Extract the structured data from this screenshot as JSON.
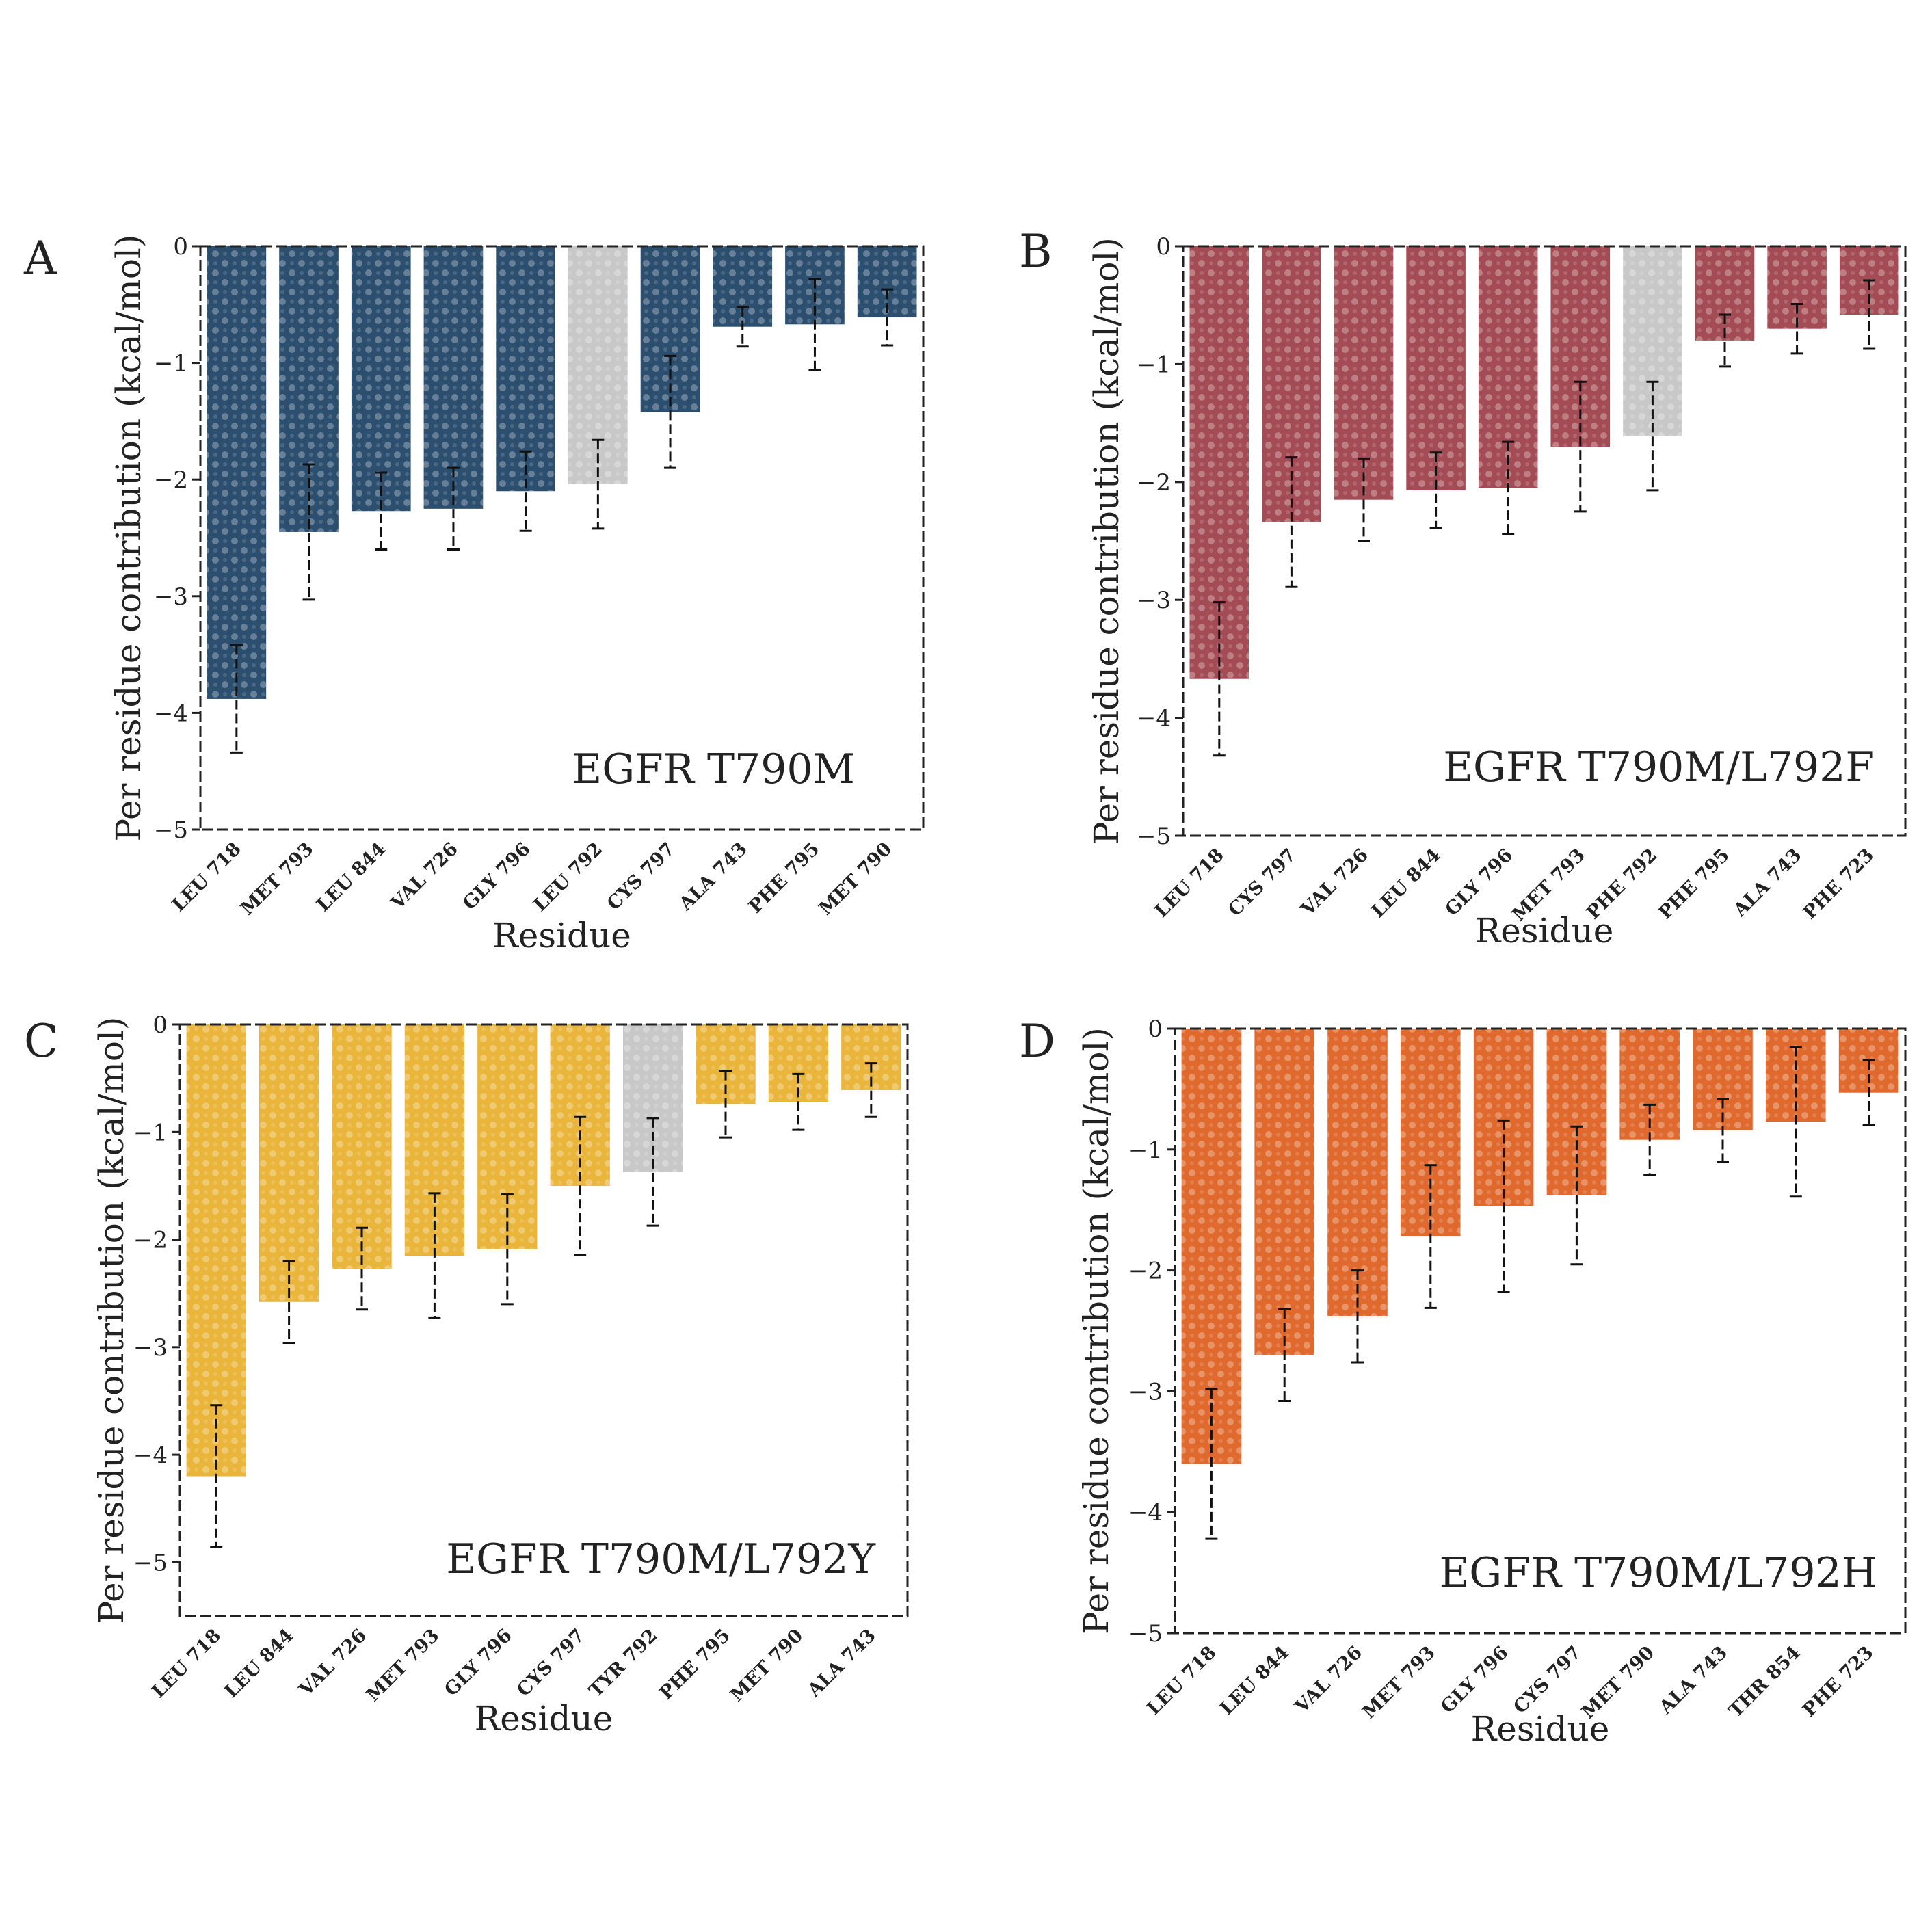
{
  "figure": {
    "panels": [
      "A",
      "B",
      "C",
      "D"
    ]
  },
  "chart_data": [
    {
      "type": "bar",
      "panel_letter": "A",
      "inset_label": "EGFR T790M",
      "color": "#2c4f70",
      "highlight_color": "#c8c8c8",
      "xlabel": "Residue",
      "ylabel": "Per residue contribution (kcal/mol)",
      "ylim": [
        -5,
        0
      ],
      "yticks": [
        0,
        -1,
        -2,
        -3,
        -4,
        -5
      ],
      "ytick_labels": [
        "0",
        "−1",
        "−2",
        "−3",
        "−4",
        "−5"
      ],
      "categories": [
        "LEU 718",
        "MET 793",
        "LEU 844",
        "VAL 726",
        "GLY 796",
        "LEU 792",
        "CYS 797",
        "ALA 743",
        "PHE 795",
        "MET 790"
      ],
      "values": [
        -3.88,
        -2.45,
        -2.27,
        -2.25,
        -2.1,
        -2.04,
        -1.42,
        -0.69,
        -0.67,
        -0.61
      ],
      "errors": [
        0.46,
        0.58,
        0.33,
        0.35,
        0.34,
        0.38,
        0.48,
        0.17,
        0.39,
        0.24
      ],
      "highlight_index": 5
    },
    {
      "type": "bar",
      "panel_letter": "B",
      "inset_label": "EGFR T790M/L792F",
      "color": "#a44c55",
      "highlight_color": "#c8c8c8",
      "xlabel": "Residue",
      "ylabel": "Per residue contribution (kcal/mol)",
      "ylim": [
        -5,
        0
      ],
      "yticks": [
        0,
        -1,
        -2,
        -3,
        -4,
        -5
      ],
      "ytick_labels": [
        "0",
        "−1",
        "−2",
        "−3",
        "−4",
        "−5"
      ],
      "categories": [
        "LEU 718",
        "CYS 797",
        "VAL 726",
        "LEU 844",
        "GLY 796",
        "MET 793",
        "PHE 792",
        "PHE 795",
        "ALA 743",
        "PHE 723"
      ],
      "values": [
        -3.67,
        -2.34,
        -2.15,
        -2.07,
        -2.05,
        -1.7,
        -1.61,
        -0.8,
        -0.7,
        -0.58
      ],
      "errors": [
        0.65,
        0.55,
        0.35,
        0.32,
        0.39,
        0.55,
        0.46,
        0.22,
        0.21,
        0.29
      ],
      "highlight_index": 6
    },
    {
      "type": "bar",
      "panel_letter": "C",
      "inset_label": "EGFR T790M/L792Y",
      "color": "#e9b53b",
      "highlight_color": "#c8c8c8",
      "xlabel": "Residue",
      "ylabel": "Per residue contribution (kcal/mol)",
      "ylim": [
        -5.5,
        0
      ],
      "yticks": [
        0,
        -1,
        -2,
        -3,
        -4,
        -5
      ],
      "ytick_labels": [
        "0",
        "−1",
        "−2",
        "−3",
        "−4",
        "−5"
      ],
      "categories": [
        "LEU 718",
        "LEU 844",
        "VAL 726",
        "MET 793",
        "GLY 796",
        "CYS 797",
        "TYR 792",
        "PHE 795",
        "MET 790",
        "ALA 743"
      ],
      "values": [
        -4.2,
        -2.58,
        -2.27,
        -2.15,
        -2.09,
        -1.5,
        -1.37,
        -0.74,
        -0.72,
        -0.61
      ],
      "errors": [
        0.66,
        0.38,
        0.38,
        0.58,
        0.51,
        0.64,
        0.5,
        0.31,
        0.26,
        0.25
      ],
      "highlight_index": 6
    },
    {
      "type": "bar",
      "panel_letter": "D",
      "inset_label": "EGFR T790M/L792H",
      "color": "#e0692e",
      "highlight_color": "#c8c8c8",
      "xlabel": "Residue",
      "ylabel": "Per residue contribution (kcal/mol)",
      "ylim": [
        -5,
        0
      ],
      "yticks": [
        0,
        -1,
        -2,
        -3,
        -4,
        -5
      ],
      "ytick_labels": [
        "0",
        "−1",
        "−2",
        "−3",
        "−4",
        "−5"
      ],
      "categories": [
        "LEU 718",
        "LEU 844",
        "VAL 726",
        "MET 793",
        "GLY 796",
        "CYS 797",
        "MET 790",
        "ALA 743",
        "THR 854",
        "PHE 723"
      ],
      "values": [
        -3.6,
        -2.7,
        -2.38,
        -1.72,
        -1.47,
        -1.38,
        -0.92,
        -0.84,
        -0.77,
        -0.53
      ],
      "errors": [
        0.62,
        0.38,
        0.38,
        0.59,
        0.71,
        0.57,
        0.29,
        0.26,
        0.62,
        0.27
      ],
      "highlight_index": -1
    }
  ]
}
